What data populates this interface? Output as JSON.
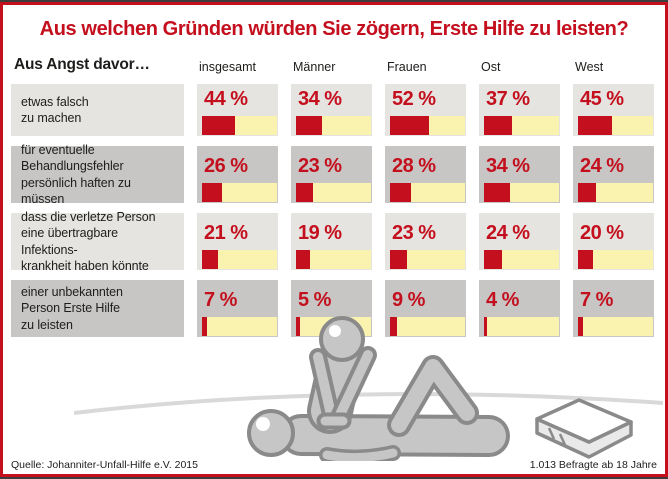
{
  "title": "Aus welchen Gründen würden Sie zögern, Erste Hilfe zu leisten?",
  "lead_in": "Aus Angst davor…",
  "columns": [
    "insgesamt",
    "Männer",
    "Frauen",
    "Ost",
    "West"
  ],
  "footer": {
    "source": "Quelle: Johanniter-Unfall-Hilfe e.V. 2015",
    "sample": "1.013 Befragte ab 18 Jahre"
  },
  "colors": {
    "accent_red": "#c4101e",
    "bar_yellow": "#faf3b0",
    "row_light": "#e6e4e0",
    "row_dark": "#c7c6c4",
    "figure_fill": "#c6c6c6",
    "figure_outline": "#8a8a8a",
    "horizon_gray": "#d9d9d9"
  },
  "chart_data": {
    "type": "bar",
    "title": "Aus welchen Gründen würden Sie zögern, Erste Hilfe zu leisten?",
    "lead_in": "Aus Angst davor…",
    "categories": [
      "insgesamt",
      "Männer",
      "Frauen",
      "Ost",
      "West"
    ],
    "groups": [
      {
        "label_lines": [
          "etwas falsch",
          "zu machen"
        ],
        "values": [
          44,
          34,
          52,
          37,
          45
        ]
      },
      {
        "label_lines": [
          "für eventuelle",
          "Behandlungsfehler",
          "persönlich haften zu müssen"
        ],
        "values": [
          26,
          23,
          28,
          34,
          24
        ]
      },
      {
        "label_lines": [
          "dass die verletze Person",
          "eine übertragbare Infektions-",
          "krankheit haben könnte"
        ],
        "values": [
          21,
          19,
          23,
          24,
          20
        ]
      },
      {
        "label_lines": [
          "einer unbekannten",
          "Person Erste Hilfe",
          "zu leisten"
        ],
        "values": [
          7,
          5,
          9,
          4,
          7
        ]
      }
    ],
    "value_format": "{v} %",
    "bar_scale_max": 100,
    "unit": "percent",
    "legend": "none",
    "grid": false,
    "illustration": "cpr-first-aid-scene",
    "source": "Quelle: Johanniter-Unfall-Hilfe e.V. 2015",
    "sample_note": "1.013 Befragte ab 18 Jahre"
  }
}
